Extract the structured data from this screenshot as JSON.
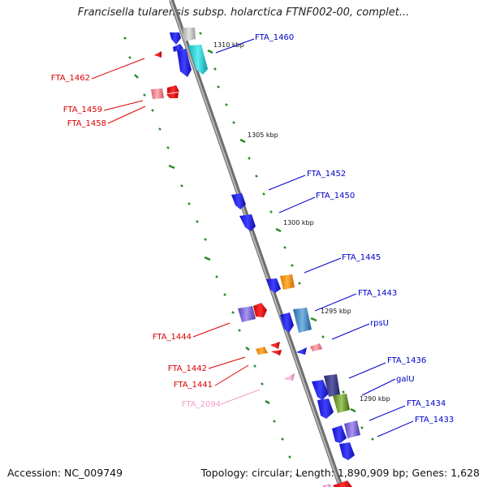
{
  "title": "Francisella tularensis subsp. holarctica FTNF002-00, complet...",
  "footer": {
    "accession": "Accession: NC_009749",
    "summary": "Topology: circular; Length: 1,890,909 bp; Genes: 1,628"
  },
  "colors": {
    "backbone": "#8c8c8c",
    "right_label": "#0000cc",
    "left_label": "#dd0000",
    "pink_label": "#f4a0c8",
    "tick": "#2a8a2a"
  },
  "kbp_markers": [
    "1310 kbp",
    "1305 kbp",
    "1300 kbp",
    "1295 kbp",
    "1290 kbp"
  ],
  "genes_right": [
    "FTA_1460",
    "FTA_1452",
    "FTA_1450",
    "FTA_1445",
    "FTA_1443",
    "rpsU",
    "FTA_1436",
    "galU",
    "FTA_1434",
    "FTA_1433"
  ],
  "genes_left": [
    "FTA_1462",
    "FTA_1459",
    "FTA_1458",
    "FTA_1444",
    "FTA_1442",
    "FTA_1441"
  ],
  "genes_pseudo": [
    "FTA_2094"
  ]
}
